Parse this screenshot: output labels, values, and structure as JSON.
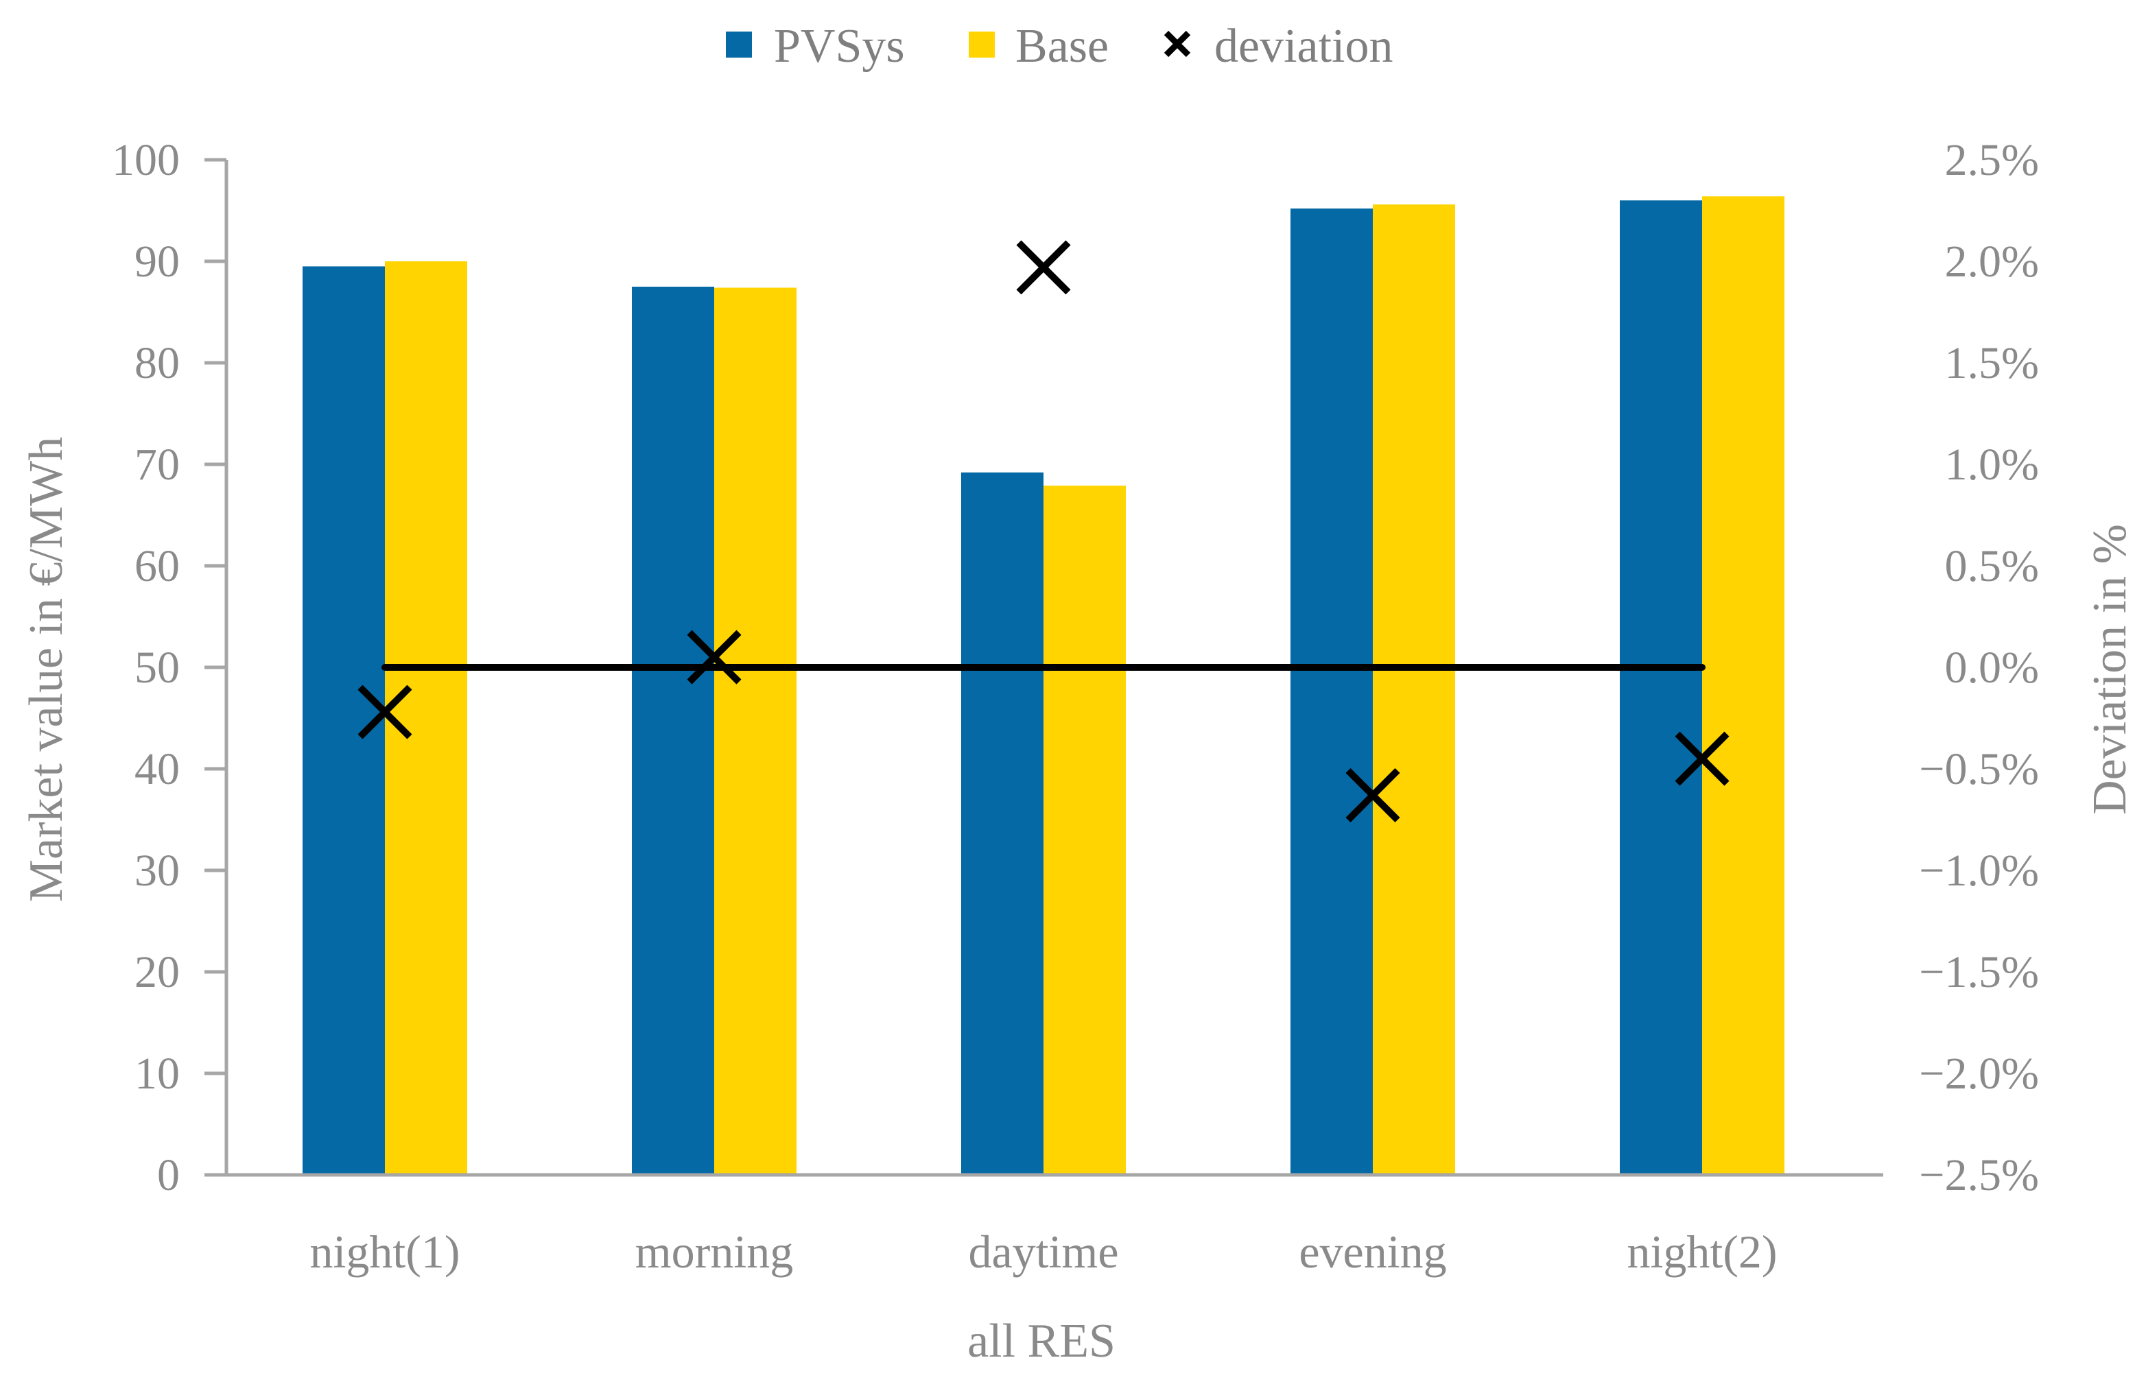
{
  "chart_data": {
    "type": "bar",
    "categories": [
      "night(1)",
      "morning",
      "daytime",
      "evening",
      "night(2)"
    ],
    "xlabel": "all RES",
    "ylabel": "Market value in €/MWh",
    "y2label": "Deviation in %",
    "ylim": [
      0,
      100
    ],
    "y2lim": [
      -2.5,
      2.5
    ],
    "yticks": [
      "0",
      "10",
      "20",
      "30",
      "40",
      "50",
      "60",
      "70",
      "80",
      "90",
      "100"
    ],
    "y2ticks": [
      "−2.5%",
      "−2.0%",
      "−1.5%",
      "−1.0%",
      "−0.5%",
      "0.0%",
      "0.5%",
      "1.0%",
      "1.5%",
      "2.0%",
      "2.5%"
    ],
    "series": [
      {
        "name": "PVSys",
        "type": "bar",
        "axis": "left",
        "color": "#0569a5",
        "values": [
          89.5,
          87.5,
          69.2,
          95.2,
          96.0
        ]
      },
      {
        "name": "Base",
        "type": "bar",
        "axis": "left",
        "color": "#ffd400",
        "values": [
          90.0,
          87.4,
          67.9,
          95.6,
          96.4
        ]
      },
      {
        "name": "deviation",
        "type": "scatter",
        "axis": "right",
        "marker": "x",
        "color": "#000000",
        "values": [
          -0.22,
          0.05,
          1.97,
          -0.63,
          -0.45
        ]
      }
    ],
    "reference_line": {
      "axis": "right",
      "value": 0.0,
      "color": "#000000"
    },
    "legend": "top-center",
    "grid": false
  }
}
